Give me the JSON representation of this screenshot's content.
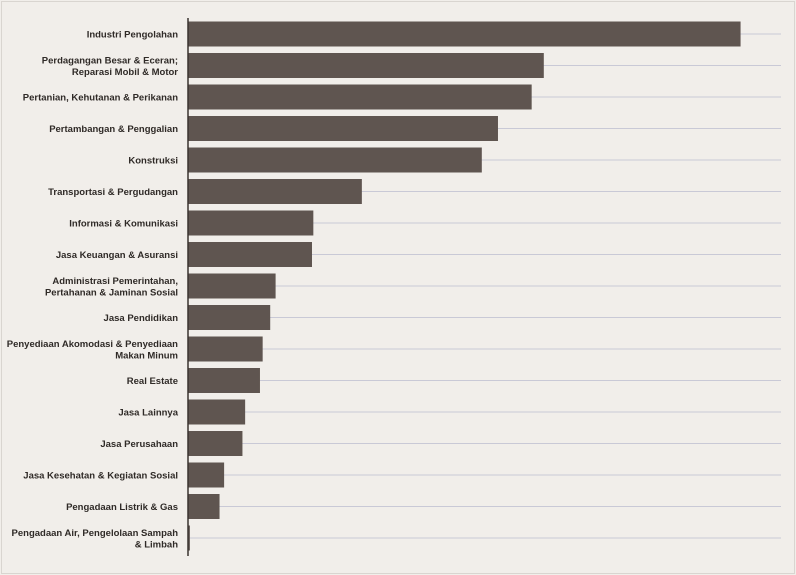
{
  "chart_data": {
    "type": "bar",
    "orientation": "horizontal",
    "title": "",
    "xlabel": "",
    "ylabel": "",
    "grid": true,
    "bar_color": "#5f5550",
    "background_color": "#f1eeea",
    "categories": [
      [
        "Industri Pengolahan"
      ],
      [
        "Perdagangan Besar & Eceran;",
        "Reparasi Mobil & Motor"
      ],
      [
        "Pertanian, Kehutanan & Perikanan"
      ],
      [
        "Pertambangan & Penggalian"
      ],
      [
        "Konstruksi"
      ],
      [
        "Transportasi & Pergudangan"
      ],
      [
        "Informasi & Komunikasi"
      ],
      [
        "Jasa Keuangan & Asuransi"
      ],
      [
        "Administrasi Pemerintahan,",
        "Pertahanan & Jaminan Sosial"
      ],
      [
        "Jasa Pendidikan"
      ],
      [
        "Penyediaan Akomodasi & Penyediaan",
        "Makan Minum"
      ],
      [
        "Real Estate"
      ],
      [
        "Jasa Lainnya"
      ],
      [
        "Jasa Perusahaan"
      ],
      [
        "Jasa Kesehatan & Kegiatan Sosial"
      ],
      [
        "Pengadaan Listrik & Gas"
      ],
      [
        "Pengadaan Air, Pengelolaan Sampah",
        "& Limbah"
      ]
    ],
    "values": [
      20.5,
      13.2,
      12.75,
      11.5,
      10.9,
      6.45,
      4.65,
      4.6,
      3.25,
      3.05,
      2.77,
      2.67,
      2.12,
      2.02,
      1.34,
      1.17,
      0.07
    ],
    "xlim": [
      0,
      22
    ]
  }
}
